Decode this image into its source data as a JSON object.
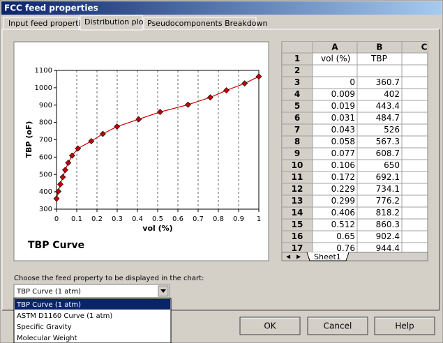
{
  "window": {
    "title": "FCC feed properties"
  },
  "tabs": [
    "Input feed properties",
    "Distribution plots",
    "Pseudocomponents Breakdown"
  ],
  "chart_data": {
    "type": "line",
    "title": "TBP Curve",
    "xlabel": "vol (%)",
    "ylabel": "TBP (oF)",
    "x": [
      0,
      0.009,
      0.019,
      0.031,
      0.043,
      0.058,
      0.077,
      0.106,
      0.172,
      0.229,
      0.299,
      0.406,
      0.512,
      0.65,
      0.76,
      0.84,
      0.93,
      1
    ],
    "series": [
      {
        "color": "#cc0000",
        "marker_color": "#c00000",
        "values": [
          360.7,
          402,
          443.4,
          484.7,
          526,
          567.3,
          608.7,
          650,
          692.1,
          734.1,
          776.2,
          818.2,
          860.3,
          902.4,
          944.4,
          985,
          1025,
          1065
        ]
      }
    ],
    "xlim": [
      0,
      1
    ],
    "xticks": [
      0,
      0.1,
      0.2,
      0.3,
      0.4,
      0.5,
      0.6,
      0.7,
      0.8,
      0.9,
      1
    ],
    "ylim": [
      300,
      1100
    ],
    "yticks": [
      300,
      400,
      500,
      600,
      700,
      800,
      900,
      1000,
      1100
    ],
    "grid": "x"
  },
  "sheet": {
    "columns": [
      "A",
      "B",
      "C"
    ],
    "row_numbers": [
      1,
      2,
      3,
      4,
      5,
      6,
      7,
      8,
      9,
      10,
      11,
      12,
      13,
      14,
      15,
      16,
      17
    ],
    "header": [
      "vol (%)",
      "TBP"
    ],
    "rows": [
      [
        0,
        360.7
      ],
      [
        0.009,
        402
      ],
      [
        0.019,
        443.4
      ],
      [
        0.031,
        484.7
      ],
      [
        0.043,
        526
      ],
      [
        0.058,
        567.3
      ],
      [
        0.077,
        608.7
      ],
      [
        0.106,
        650
      ],
      [
        0.172,
        692.1
      ],
      [
        0.229,
        734.1
      ],
      [
        0.299,
        776.2
      ],
      [
        0.406,
        818.2
      ],
      [
        0.512,
        860.3
      ],
      [
        0.65,
        902.4
      ],
      [
        0.76,
        944.4
      ]
    ],
    "tab": "Sheet1"
  },
  "chooser": {
    "label": "Choose the feed property to be displayed in the chart:",
    "selected": "TBP Curve (1 atm)",
    "options": [
      "TBP Curve (1 atm)",
      "ASTM D1160 Curve (1 atm)",
      "Specific Gravity",
      "Molecular Weight"
    ]
  },
  "buttons": [
    "OK",
    "Cancel",
    "Help"
  ]
}
